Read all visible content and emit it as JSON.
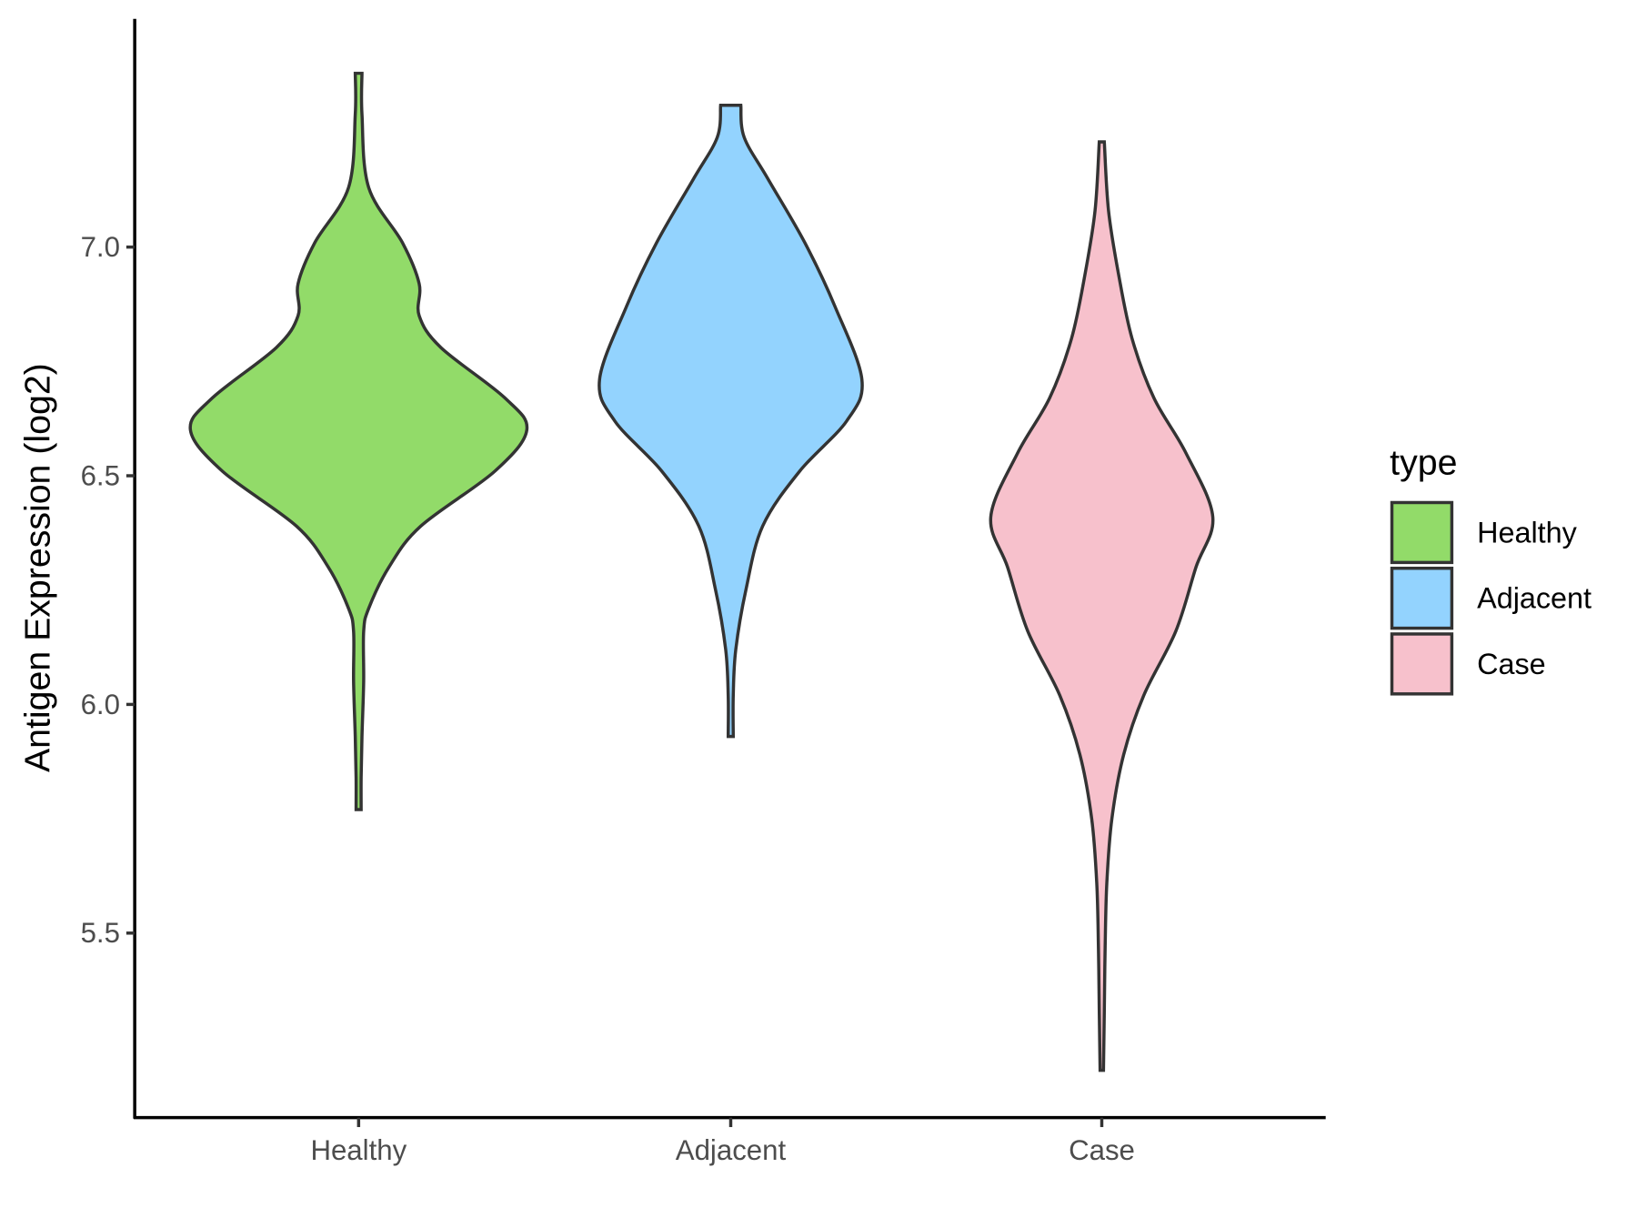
{
  "chart_data": {
    "type": "violin",
    "title": "",
    "xlabel": "",
    "ylabel": "Antigen Expression (log2)",
    "categories": [
      "Healthy",
      "Adjacent",
      "Case"
    ],
    "ylim": [
      5.1,
      7.5
    ],
    "yticks": [
      "5.5",
      "6.0",
      "6.5",
      "7.0"
    ],
    "grid": false,
    "legend": {
      "title": "type",
      "position": "right",
      "entries": [
        "Healthy",
        "Adjacent",
        "Case"
      ]
    },
    "colors": {
      "Healthy": "#92DB69",
      "Adjacent": "#93D3FE",
      "Case": "#F7C1CC",
      "outline": "#333333"
    },
    "series": [
      {
        "name": "Healthy",
        "range": [
          5.77,
          7.38
        ],
        "profile": [
          [
            7.38,
            0.02
          ],
          [
            7.29,
            0.02
          ],
          [
            7.13,
            0.06
          ],
          [
            7.01,
            0.26
          ],
          [
            6.92,
            0.36
          ],
          [
            6.85,
            0.36
          ],
          [
            6.78,
            0.49
          ],
          [
            6.67,
            0.87
          ],
          [
            6.6,
            1.0
          ],
          [
            6.51,
            0.81
          ],
          [
            6.39,
            0.37
          ],
          [
            6.3,
            0.18
          ],
          [
            6.21,
            0.06
          ],
          [
            6.16,
            0.03
          ],
          [
            6.05,
            0.03
          ],
          [
            5.93,
            0.02
          ],
          [
            5.84,
            0.015
          ],
          [
            5.77,
            0.015
          ]
        ]
      },
      {
        "name": "Adjacent",
        "range": [
          5.93,
          7.31
        ],
        "profile": [
          [
            7.31,
            0.06
          ],
          [
            7.24,
            0.08
          ],
          [
            7.15,
            0.22
          ],
          [
            7.01,
            0.44
          ],
          [
            6.87,
            0.62
          ],
          [
            6.71,
            0.78
          ],
          [
            6.62,
            0.69
          ],
          [
            6.51,
            0.41
          ],
          [
            6.39,
            0.19
          ],
          [
            6.25,
            0.09
          ],
          [
            6.12,
            0.03
          ],
          [
            6.02,
            0.015
          ],
          [
            5.93,
            0.015
          ]
        ]
      },
      {
        "name": "Case",
        "range": [
          5.2,
          7.23
        ],
        "profile": [
          [
            7.23,
            0.015
          ],
          [
            7.08,
            0.04
          ],
          [
            6.94,
            0.1
          ],
          [
            6.8,
            0.18
          ],
          [
            6.67,
            0.31
          ],
          [
            6.55,
            0.5
          ],
          [
            6.41,
            0.66
          ],
          [
            6.3,
            0.56
          ],
          [
            6.16,
            0.44
          ],
          [
            6.02,
            0.25
          ],
          [
            5.89,
            0.13
          ],
          [
            5.75,
            0.06
          ],
          [
            5.61,
            0.03
          ],
          [
            5.47,
            0.02
          ],
          [
            5.33,
            0.015
          ],
          [
            5.2,
            0.01
          ]
        ]
      }
    ]
  }
}
